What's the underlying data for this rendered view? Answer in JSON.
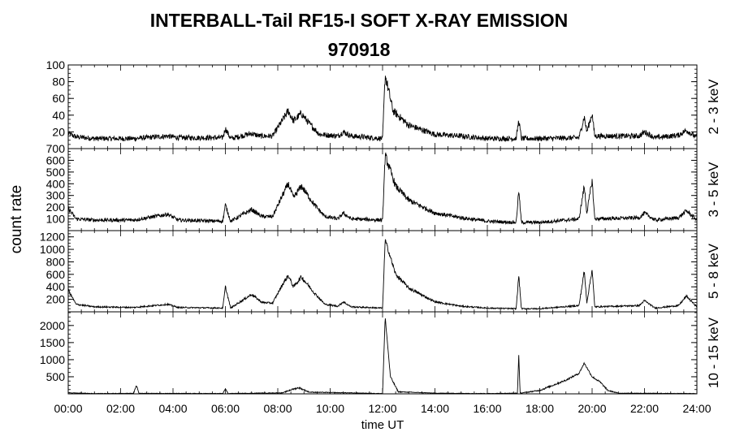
{
  "chart_data": {
    "type": "line",
    "title": "INTERBALL-Tail RF15-I SOFT X-RAY EMISSION",
    "subtitle": "970918",
    "xlabel": "time UT",
    "ylabel": "count rate",
    "xlim": [
      "00:00",
      "24:00"
    ],
    "x_ticks": [
      "00:00",
      "02:00",
      "04:00",
      "06:00",
      "08:00",
      "10:00",
      "12:00",
      "14:00",
      "16:00",
      "18:00",
      "20:00",
      "22:00",
      "24:00"
    ],
    "panels": [
      {
        "name": "2 - 3 keV",
        "ylim": [
          0,
          100
        ],
        "y_ticks": [
          20,
          40,
          60,
          80,
          100
        ],
        "baseline": 12,
        "noise": 4,
        "points": [
          [
            0,
            18
          ],
          [
            0.3,
            14
          ],
          [
            1,
            12
          ],
          [
            2.5,
            12
          ],
          [
            3.8,
            15
          ],
          [
            4.2,
            13
          ],
          [
            5.9,
            13
          ],
          [
            6.0,
            24
          ],
          [
            6.2,
            12
          ],
          [
            7.0,
            18
          ],
          [
            7.3,
            15
          ],
          [
            7.8,
            15
          ],
          [
            8.2,
            35
          ],
          [
            8.4,
            45
          ],
          [
            8.6,
            33
          ],
          [
            8.9,
            42
          ],
          [
            9.2,
            30
          ],
          [
            9.6,
            17
          ],
          [
            10.3,
            15
          ],
          [
            10.5,
            20
          ],
          [
            10.8,
            15
          ],
          [
            12.0,
            12
          ],
          [
            12.1,
            88
          ],
          [
            12.4,
            45
          ],
          [
            13.0,
            28
          ],
          [
            14.0,
            17
          ],
          [
            15.0,
            15
          ],
          [
            16.0,
            12
          ],
          [
            17.1,
            12
          ],
          [
            17.2,
            34
          ],
          [
            17.3,
            12
          ],
          [
            18.0,
            12
          ],
          [
            19.5,
            13
          ],
          [
            19.7,
            38
          ],
          [
            19.8,
            20
          ],
          [
            20.0,
            42
          ],
          [
            20.1,
            15
          ],
          [
            21.8,
            15
          ],
          [
            22.0,
            20
          ],
          [
            22.4,
            13
          ],
          [
            23.3,
            16
          ],
          [
            23.6,
            22
          ],
          [
            24,
            13
          ]
        ]
      },
      {
        "name": "3 - 5 keV",
        "ylim": [
          0,
          700
        ],
        "y_ticks": [
          100,
          200,
          300,
          400,
          500,
          600,
          700
        ],
        "baseline": 60,
        "noise": 18,
        "points": [
          [
            0,
            190
          ],
          [
            0.3,
            100
          ],
          [
            1,
            90
          ],
          [
            2.5,
            90
          ],
          [
            3.8,
            140
          ],
          [
            4.2,
            90
          ],
          [
            5.9,
            80
          ],
          [
            6.0,
            220
          ],
          [
            6.2,
            80
          ],
          [
            7.0,
            180
          ],
          [
            7.4,
            120
          ],
          [
            7.8,
            120
          ],
          [
            8.2,
            310
          ],
          [
            8.4,
            400
          ],
          [
            8.6,
            280
          ],
          [
            8.9,
            380
          ],
          [
            9.4,
            220
          ],
          [
            9.8,
            120
          ],
          [
            10.3,
            100
          ],
          [
            10.5,
            150
          ],
          [
            10.8,
            100
          ],
          [
            12.0,
            90
          ],
          [
            12.1,
            640
          ],
          [
            12.5,
            380
          ],
          [
            13.0,
            260
          ],
          [
            14.0,
            150
          ],
          [
            15.0,
            110
          ],
          [
            16.0,
            80
          ],
          [
            17.1,
            70
          ],
          [
            17.2,
            340
          ],
          [
            17.3,
            70
          ],
          [
            18.0,
            70
          ],
          [
            19.5,
            100
          ],
          [
            19.7,
            380
          ],
          [
            19.8,
            150
          ],
          [
            20.0,
            430
          ],
          [
            20.1,
            100
          ],
          [
            21.8,
            110
          ],
          [
            22.0,
            150
          ],
          [
            22.4,
            90
          ],
          [
            23.3,
            110
          ],
          [
            23.6,
            170
          ],
          [
            24,
            90
          ]
        ]
      },
      {
        "name": "5 - 8 keV",
        "ylim": [
          0,
          1300
        ],
        "y_ticks": [
          200,
          400,
          600,
          800,
          1000,
          1200
        ],
        "baseline": 40,
        "noise": 12,
        "points": [
          [
            0,
            350
          ],
          [
            0.3,
            120
          ],
          [
            1,
            80
          ],
          [
            2.5,
            70
          ],
          [
            3.8,
            120
          ],
          [
            4.2,
            70
          ],
          [
            5.9,
            60
          ],
          [
            6.0,
            400
          ],
          [
            6.2,
            60
          ],
          [
            7.0,
            280
          ],
          [
            7.4,
            150
          ],
          [
            7.8,
            140
          ],
          [
            8.2,
            450
          ],
          [
            8.4,
            580
          ],
          [
            8.6,
            400
          ],
          [
            8.9,
            560
          ],
          [
            9.4,
            300
          ],
          [
            9.8,
            120
          ],
          [
            10.3,
            90
          ],
          [
            10.5,
            160
          ],
          [
            10.8,
            80
          ],
          [
            12.0,
            60
          ],
          [
            12.1,
            1150
          ],
          [
            12.5,
            600
          ],
          [
            13.0,
            380
          ],
          [
            14.0,
            160
          ],
          [
            15.0,
            90
          ],
          [
            16.0,
            60
          ],
          [
            17.1,
            50
          ],
          [
            17.2,
            580
          ],
          [
            17.3,
            50
          ],
          [
            18.0,
            50
          ],
          [
            19.5,
            100
          ],
          [
            19.7,
            650
          ],
          [
            19.8,
            150
          ],
          [
            20.0,
            680
          ],
          [
            20.1,
            80
          ],
          [
            21.8,
            100
          ],
          [
            22.0,
            180
          ],
          [
            22.4,
            60
          ],
          [
            23.3,
            100
          ],
          [
            23.6,
            250
          ],
          [
            24,
            80
          ]
        ]
      },
      {
        "name": "10 - 15 keV",
        "ylim": [
          0,
          2400
        ],
        "y_ticks": [
          500,
          1000,
          1500,
          2000
        ],
        "baseline": 10,
        "noise": 8,
        "points": [
          [
            0,
            30
          ],
          [
            1,
            10
          ],
          [
            2.5,
            15
          ],
          [
            2.6,
            250
          ],
          [
            2.7,
            15
          ],
          [
            5.9,
            10
          ],
          [
            6.0,
            150
          ],
          [
            6.1,
            10
          ],
          [
            8.2,
            30
          ],
          [
            8.5,
            120
          ],
          [
            8.8,
            180
          ],
          [
            9.2,
            50
          ],
          [
            12.0,
            10
          ],
          [
            12.1,
            2250
          ],
          [
            12.3,
            500
          ],
          [
            12.6,
            60
          ],
          [
            14.0,
            20
          ],
          [
            16.0,
            10
          ],
          [
            17.15,
            20
          ],
          [
            17.2,
            1150
          ],
          [
            17.25,
            20
          ],
          [
            18.0,
            100
          ],
          [
            18.5,
            250
          ],
          [
            19.0,
            400
          ],
          [
            19.5,
            600
          ],
          [
            19.7,
            900
          ],
          [
            20.0,
            500
          ],
          [
            20.3,
            350
          ],
          [
            20.6,
            100
          ],
          [
            21,
            20
          ],
          [
            24,
            10
          ]
        ]
      }
    ]
  }
}
